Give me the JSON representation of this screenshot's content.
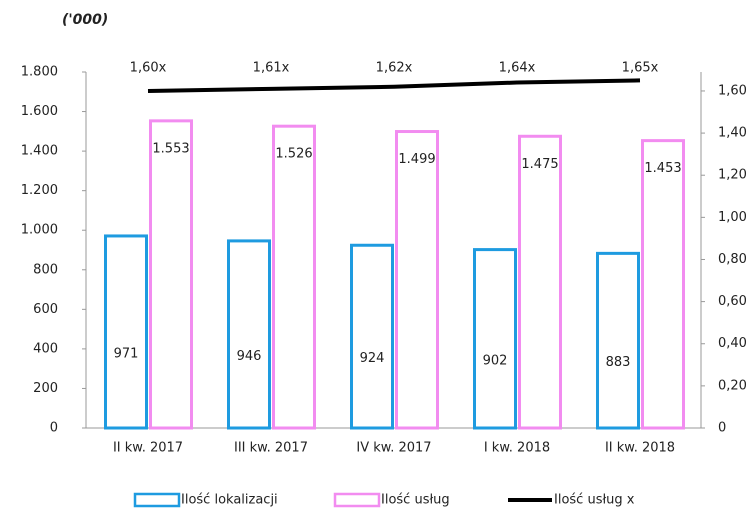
{
  "chart_data": {
    "type": "bar",
    "title": "('000)",
    "categories": [
      "II kw. 2017",
      "III kw. 2017",
      "IV kw. 2017",
      "I kw. 2018",
      "II kw. 2018"
    ],
    "series": [
      {
        "name": "Ilość lokalizacji",
        "type": "bar",
        "color": "#1e9be0",
        "values": [
          971,
          946,
          924,
          902,
          883
        ],
        "value_labels": [
          "971",
          "946",
          "924",
          "902",
          "883"
        ]
      },
      {
        "name": "Ilość usług",
        "type": "bar",
        "color": "#f28cf0",
        "values": [
          1553,
          1526,
          1499,
          1475,
          1453
        ],
        "value_labels": [
          "1.553",
          "1.526",
          "1.499",
          "1.475",
          "1.453"
        ]
      },
      {
        "name": "Ilość usług x",
        "type": "line",
        "axis": "y2",
        "color": "#000000",
        "values": [
          1.6,
          1.61,
          1.62,
          1.64,
          1.65
        ],
        "value_labels": [
          "1,60x",
          "1,61x",
          "1,62x",
          "1,64x",
          "1,65x"
        ]
      }
    ],
    "ylim": [
      0,
      1800
    ],
    "yticks": [
      0,
      200,
      400,
      600,
      800,
      {
        "value": 1000,
        "label": "1.000"
      },
      {
        "value": 1200,
        "label": "1.200"
      },
      {
        "value": 1400,
        "label": "1.400"
      },
      {
        "value": 1600,
        "label": "1.600"
      },
      {
        "value": 1800,
        "label": "1.800"
      }
    ],
    "y2lim": [
      0,
      1.69
    ],
    "y2ticks": [
      0,
      {
        "value": 0.2,
        "label": "0,20"
      },
      {
        "value": 0.4,
        "label": "0,40"
      },
      {
        "value": 0.6,
        "label": "0,60"
      },
      {
        "value": 0.8,
        "label": "0,80"
      },
      {
        "value": 1.0,
        "label": "1,00"
      },
      {
        "value": 1.2,
        "label": "1,20"
      },
      {
        "value": 1.4,
        "label": "1,40"
      },
      {
        "value": 1.6,
        "label": "1,60"
      }
    ],
    "legend": "bottom"
  }
}
